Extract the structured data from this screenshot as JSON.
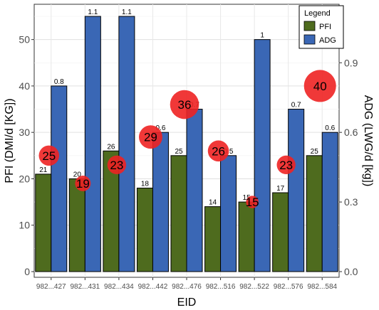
{
  "chart_data": {
    "type": "bar",
    "title": "",
    "xlabel": "EID",
    "ylabel": "PFI (DMI/d [KG])",
    "y2label": "ADG (LWG/d [kg])",
    "categories": [
      "982...427",
      "982...431",
      "982...434",
      "982...442",
      "982...476",
      "982...516",
      "982...522",
      "982...576",
      "982...584"
    ],
    "ylim": [
      0,
      55
    ],
    "y2lim": [
      0,
      1.1
    ],
    "yticks": [
      0,
      10,
      20,
      30,
      40,
      50
    ],
    "y2ticks": [
      "0.0",
      "0.3",
      "0.6",
      "0.9"
    ],
    "y2tick_values": [
      0,
      0.3,
      0.6,
      0.9
    ],
    "grid": true,
    "legend_position": "top-right",
    "legend_title": "Legend",
    "series": [
      {
        "name": "PFI",
        "axis": "left",
        "color": "#4e6b1e",
        "values": [
          21,
          20,
          26,
          18,
          25,
          14,
          15,
          17,
          25
        ],
        "labels": [
          "21",
          "20",
          "26",
          "18",
          "25",
          "14",
          "15",
          "17",
          "25"
        ]
      },
      {
        "name": "ADG",
        "axis": "right",
        "color": "#3a67b5",
        "values": [
          0.8,
          1.1,
          1.1,
          0.6,
          0.7,
          0.5,
          1.0,
          0.7,
          0.6
        ],
        "labels": [
          "0.8",
          "1.1",
          "1.1",
          "0.6",
          "0.7",
          "0.5",
          "1",
          "0.7",
          "0.6"
        ]
      }
    ],
    "bubbles": {
      "color": "#ee2222",
      "values": [
        25,
        19,
        23,
        29,
        36,
        26,
        15,
        23,
        40
      ],
      "labels": [
        "25",
        "19",
        "23",
        "29",
        "36",
        "26",
        "15",
        "23",
        "40"
      ]
    }
  }
}
